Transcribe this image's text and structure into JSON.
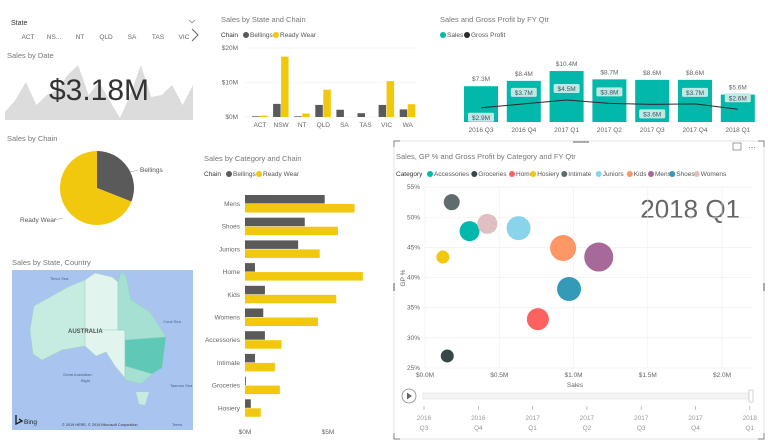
{
  "slicer": {
    "title": "State",
    "items": [
      "ACT",
      "NS...",
      "NT",
      "QLD",
      "SA",
      "TAS",
      "VIC"
    ],
    "next_icon": "chevron-right-icon",
    "dropdown_icon": "chevron-down-icon"
  },
  "kpi": {
    "title": "Sales by Date",
    "value": "$3.18M"
  },
  "colors": {
    "bellings": "#5a5a5a",
    "ready_wear": "#f2c80f",
    "sales": "#01b8aa",
    "gross_profit": "#2b2b2b",
    "gp_label_bg": "#bfe9e4",
    "map_water": "#a9c5ef"
  },
  "chart_data": [
    {
      "id": "sales-by-date",
      "type": "area",
      "title": "Sales by Date",
      "values": [
        8,
        20,
        38,
        15,
        25,
        30,
        45,
        55,
        25,
        38,
        20,
        2,
        25,
        55,
        23,
        25,
        35,
        15,
        35
      ]
    },
    {
      "id": "sales-by-state-chain",
      "type": "bar",
      "title": "Sales by State and Chain",
      "legend_title": "Chain",
      "categories": [
        "ACT",
        "NSW",
        "NT",
        "QLD",
        "SA",
        "TAS",
        "VIC",
        "WA"
      ],
      "series": [
        {
          "name": "Bellings",
          "values": [
            0.2,
            3.8,
            0.2,
            3.5,
            2.1,
            1.1,
            3.5,
            2.2
          ]
        },
        {
          "name": "Ready Wear",
          "values": [
            0.4,
            17.5,
            1.0,
            7.9,
            0,
            0,
            10.4,
            3.7
          ]
        }
      ],
      "yticks": [
        "$0M",
        "$10M",
        "$20M"
      ],
      "ylim": [
        0,
        20
      ],
      "unit": "$M",
      "grid": true,
      "legend": "top-left"
    },
    {
      "id": "sales-gp-by-qtr",
      "type": "bar",
      "title": "Sales and Gross Profit by FY Qtr",
      "categories": [
        "2016 Q3",
        "2016 Q4",
        "2017 Q1",
        "2017 Q2",
        "2017 Q3",
        "2017 Q4",
        "2018 Q1"
      ],
      "series": [
        {
          "name": "Sales",
          "kind": "bar",
          "values": [
            7.3,
            8.4,
            10.4,
            8.7,
            8.6,
            8.6,
            5.6
          ],
          "labels": [
            "$7.3M",
            "$8.4M",
            "$10.4M",
            "$8.7M",
            "$8.6M",
            "$8.6M",
            "$5.6M"
          ]
        },
        {
          "name": "Gross Profit",
          "kind": "line",
          "values": [
            2.9,
            3.7,
            4.5,
            3.8,
            3.6,
            3.7,
            2.6
          ],
          "labels": [
            "$2.9M",
            "$3.7M",
            "$4.5M",
            "$3.8M",
            "$3.6M",
            "$3.7M",
            "$2.6M"
          ]
        }
      ],
      "unit": "$M",
      "legend": "top-left"
    },
    {
      "id": "sales-by-chain",
      "type": "pie",
      "title": "Sales by Chain",
      "categories": [
        "Bellings",
        "Ready Wear"
      ],
      "values": [
        31,
        69
      ],
      "unit": "%"
    },
    {
      "id": "sales-by-category-chain",
      "type": "bar",
      "orientation": "horizontal",
      "title": "Sales by Category and Chain",
      "legend_title": "Chain",
      "categories": [
        "Mens",
        "Shoes",
        "Juniors",
        "Home",
        "Kids",
        "Womens",
        "Accessories",
        "Intimate",
        "Groceries",
        "Hosiery"
      ],
      "series": [
        {
          "name": "Bellings",
          "values": [
            4.8,
            3.6,
            3.2,
            0.6,
            1.2,
            1.1,
            1.2,
            0.6,
            0.05,
            0.35
          ]
        },
        {
          "name": "Ready Wear",
          "values": [
            6.6,
            5.6,
            4.5,
            7.1,
            5.5,
            4.4,
            2.2,
            1.8,
            2.1,
            0.95
          ]
        }
      ],
      "xticks": [
        "$0M",
        "$5M"
      ],
      "xlim": [
        0,
        7.5
      ],
      "unit": "$M",
      "legend": "top-left"
    },
    {
      "id": "sales-gp-scatter",
      "type": "scatter",
      "title": "Sales, GP % and Gross Profit by Category and FY Qtr",
      "legend_title": "Category",
      "play_label": "2018 Q1",
      "xlabel": "Sales",
      "ylabel": "GP %",
      "xticks": [
        "$0.0M",
        "$0.5M",
        "$1.0M",
        "$1.5M",
        "$2.0M"
      ],
      "xlim": [
        0,
        2.2
      ],
      "yticks": [
        "25%",
        "30%",
        "35%",
        "40%",
        "45%",
        "50%",
        "55%"
      ],
      "ylim": [
        25,
        55
      ],
      "points": [
        {
          "name": "Accessories",
          "color": "#01b8aa",
          "x": 0.3,
          "y": 47.7,
          "size": 10
        },
        {
          "name": "Groceries",
          "color": "#374649",
          "x": 0.15,
          "y": 27.0,
          "size": 6.5
        },
        {
          "name": "Home",
          "color": "#fd625e",
          "x": 0.76,
          "y": 33.1,
          "size": 11
        },
        {
          "name": "Hosiery",
          "color": "#f2c80f",
          "x": 0.12,
          "y": 43.4,
          "size": 6.5
        },
        {
          "name": "Intimate",
          "color": "#5f6b6d",
          "x": 0.18,
          "y": 52.5,
          "size": 8
        },
        {
          "name": "Juniors",
          "color": "#8ad4eb",
          "x": 0.63,
          "y": 48.2,
          "size": 12
        },
        {
          "name": "Kids",
          "color": "#fe9666",
          "x": 0.93,
          "y": 44.9,
          "size": 13
        },
        {
          "name": "Mens",
          "color": "#a66999",
          "x": 1.17,
          "y": 43.4,
          "size": 14.5
        },
        {
          "name": "Shoes",
          "color": "#3599b8",
          "x": 0.97,
          "y": 38.1,
          "size": 12
        },
        {
          "name": "Womens",
          "color": "#dfbfbf",
          "x": 0.42,
          "y": 48.9,
          "size": 10
        }
      ],
      "play_axis": {
        "ticks": [
          [
            "2016",
            "Q3"
          ],
          [
            "2016",
            "Q4"
          ],
          [
            "2017",
            "Q1"
          ],
          [
            "2017",
            "Q2"
          ],
          [
            "2017",
            "Q3"
          ],
          [
            "2017",
            "Q4"
          ],
          [
            "2018",
            "Q1"
          ]
        ],
        "current": "2018 Q1"
      }
    }
  ],
  "map": {
    "title": "Sales by State, Country",
    "labels": {
      "country": "AUSTRALIA",
      "timor": "Timor Sea",
      "coral": "Coral Sea",
      "bight1": "Great Australian",
      "bight2": "Bight",
      "tasman": "Tasman Sea"
    },
    "brand": "Bing",
    "copyright": "© 2019 HERE, © 2019 Microsoft Corporation",
    "terms": "Terms"
  }
}
